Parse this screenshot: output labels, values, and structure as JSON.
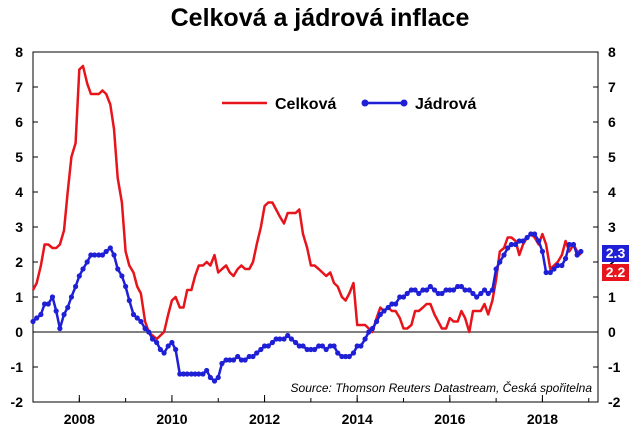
{
  "chart_data": {
    "type": "line",
    "title": "Celková a jádrová inflace",
    "source": "Source: Thomson Reuters Datastream, Česká spořitelna",
    "xlim": [
      2007.0,
      2019.2
    ],
    "ylim": [
      -2,
      8
    ],
    "x_ticks": [
      2008,
      2010,
      2012,
      2014,
      2016,
      2018
    ],
    "y_ticks": [
      -2,
      -1,
      0,
      1,
      2,
      3,
      4,
      5,
      6,
      7,
      8
    ],
    "grid": false,
    "legend": "top-center",
    "series": [
      {
        "name": "Celková",
        "color": "#e8141b",
        "markers": false,
        "end_label": "2.2",
        "x": [
          2007.0,
          2007.08,
          2007.17,
          2007.25,
          2007.33,
          2007.42,
          2007.5,
          2007.58,
          2007.67,
          2007.75,
          2007.83,
          2007.92,
          2008.0,
          2008.08,
          2008.17,
          2008.25,
          2008.33,
          2008.42,
          2008.5,
          2008.58,
          2008.67,
          2008.75,
          2008.83,
          2008.92,
          2009.0,
          2009.08,
          2009.17,
          2009.25,
          2009.33,
          2009.42,
          2009.5,
          2009.58,
          2009.67,
          2009.75,
          2009.83,
          2009.92,
          2010.0,
          2010.08,
          2010.17,
          2010.25,
          2010.33,
          2010.42,
          2010.5,
          2010.58,
          2010.67,
          2010.75,
          2010.83,
          2010.92,
          2011.0,
          2011.08,
          2011.17,
          2011.25,
          2011.33,
          2011.42,
          2011.5,
          2011.58,
          2011.67,
          2011.75,
          2011.83,
          2011.92,
          2012.0,
          2012.08,
          2012.17,
          2012.25,
          2012.33,
          2012.42,
          2012.5,
          2012.58,
          2012.67,
          2012.75,
          2012.83,
          2012.92,
          2013.0,
          2013.08,
          2013.17,
          2013.25,
          2013.33,
          2013.42,
          2013.5,
          2013.58,
          2013.67,
          2013.75,
          2013.83,
          2013.92,
          2014.0,
          2014.08,
          2014.17,
          2014.25,
          2014.33,
          2014.42,
          2014.5,
          2014.58,
          2014.67,
          2014.75,
          2014.83,
          2014.92,
          2015.0,
          2015.08,
          2015.17,
          2015.25,
          2015.33,
          2015.42,
          2015.5,
          2015.58,
          2015.67,
          2015.75,
          2015.83,
          2015.92,
          2016.0,
          2016.08,
          2016.17,
          2016.25,
          2016.33,
          2016.42,
          2016.5,
          2016.58,
          2016.67,
          2016.75,
          2016.83,
          2016.92,
          2017.0,
          2017.08,
          2017.17,
          2017.25,
          2017.33,
          2017.42,
          2017.5,
          2017.58,
          2017.67,
          2017.75,
          2017.83,
          2017.92,
          2018.0,
          2018.08,
          2018.17,
          2018.25,
          2018.33,
          2018.42,
          2018.5,
          2018.58,
          2018.67,
          2018.75,
          2018.83
        ],
        "values": [
          1.2,
          1.4,
          1.9,
          2.5,
          2.5,
          2.4,
          2.4,
          2.5,
          2.9,
          4.0,
          5.0,
          5.4,
          7.5,
          7.6,
          7.1,
          6.8,
          6.8,
          6.8,
          6.9,
          6.8,
          6.5,
          5.8,
          4.4,
          3.7,
          2.3,
          1.9,
          1.7,
          1.3,
          1.1,
          0.3,
          0.0,
          -0.1,
          -0.2,
          -0.1,
          0.0,
          0.5,
          0.9,
          1.0,
          0.7,
          0.7,
          1.2,
          1.2,
          1.6,
          1.9,
          1.9,
          2.0,
          1.9,
          2.2,
          1.7,
          1.8,
          1.9,
          1.7,
          1.6,
          1.8,
          1.9,
          1.8,
          1.8,
          2.0,
          2.5,
          3.0,
          3.6,
          3.7,
          3.7,
          3.5,
          3.3,
          3.1,
          3.4,
          3.4,
          3.4,
          3.5,
          2.8,
          2.4,
          1.9,
          1.9,
          1.8,
          1.7,
          1.6,
          1.7,
          1.4,
          1.3,
          1.0,
          0.9,
          1.1,
          1.4,
          0.2,
          0.2,
          0.2,
          0.1,
          0.0,
          0.4,
          0.7,
          0.6,
          0.7,
          0.6,
          0.6,
          0.4,
          0.1,
          0.1,
          0.2,
          0.6,
          0.6,
          0.7,
          0.8,
          0.8,
          0.5,
          0.3,
          0.1,
          0.1,
          0.4,
          0.3,
          0.3,
          0.6,
          0.4,
          0.0,
          0.6,
          0.6,
          0.6,
          0.8,
          0.5,
          0.9,
          1.5,
          2.3,
          2.4,
          2.7,
          2.7,
          2.6,
          2.2,
          2.5,
          2.7,
          2.8,
          2.7,
          2.5,
          2.8,
          2.5,
          1.8,
          1.9,
          2.0,
          2.2,
          2.6,
          2.3,
          2.5,
          2.3,
          2.2
        ]
      },
      {
        "name": "Jádrová",
        "color": "#1f1fd6",
        "markers": true,
        "end_label": "2.3",
        "x": [
          2007.0,
          2007.08,
          2007.17,
          2007.25,
          2007.33,
          2007.42,
          2007.5,
          2007.58,
          2007.67,
          2007.75,
          2007.83,
          2007.92,
          2008.0,
          2008.08,
          2008.17,
          2008.25,
          2008.33,
          2008.42,
          2008.5,
          2008.58,
          2008.67,
          2008.75,
          2008.83,
          2008.92,
          2009.0,
          2009.08,
          2009.17,
          2009.25,
          2009.33,
          2009.42,
          2009.5,
          2009.58,
          2009.67,
          2009.75,
          2009.83,
          2009.92,
          2010.0,
          2010.08,
          2010.17,
          2010.25,
          2010.33,
          2010.42,
          2010.5,
          2010.58,
          2010.67,
          2010.75,
          2010.83,
          2010.92,
          2011.0,
          2011.08,
          2011.17,
          2011.25,
          2011.33,
          2011.42,
          2011.5,
          2011.58,
          2011.67,
          2011.75,
          2011.83,
          2011.92,
          2012.0,
          2012.08,
          2012.17,
          2012.25,
          2012.33,
          2012.42,
          2012.5,
          2012.58,
          2012.67,
          2012.75,
          2012.83,
          2012.92,
          2013.0,
          2013.08,
          2013.17,
          2013.25,
          2013.33,
          2013.42,
          2013.5,
          2013.58,
          2013.67,
          2013.75,
          2013.83,
          2013.92,
          2014.0,
          2014.08,
          2014.17,
          2014.25,
          2014.33,
          2014.42,
          2014.5,
          2014.58,
          2014.67,
          2014.75,
          2014.83,
          2014.92,
          2015.0,
          2015.08,
          2015.17,
          2015.25,
          2015.33,
          2015.42,
          2015.5,
          2015.58,
          2015.67,
          2015.75,
          2015.83,
          2015.92,
          2016.0,
          2016.08,
          2016.17,
          2016.25,
          2016.33,
          2016.42,
          2016.5,
          2016.58,
          2016.67,
          2016.75,
          2016.83,
          2016.92,
          2017.0,
          2017.08,
          2017.17,
          2017.25,
          2017.33,
          2017.42,
          2017.5,
          2017.58,
          2017.67,
          2017.75,
          2017.83,
          2017.92,
          2018.0,
          2018.08,
          2018.17,
          2018.25,
          2018.33,
          2018.42,
          2018.5,
          2018.58,
          2018.67,
          2018.75,
          2018.83
        ],
        "values": [
          0.3,
          0.4,
          0.5,
          0.8,
          0.8,
          1.0,
          0.6,
          0.1,
          0.5,
          0.7,
          1.0,
          1.3,
          1.6,
          1.8,
          2.0,
          2.2,
          2.2,
          2.2,
          2.2,
          2.3,
          2.4,
          2.2,
          1.8,
          1.6,
          1.3,
          0.9,
          0.5,
          0.4,
          0.3,
          0.1,
          0.0,
          -0.2,
          -0.3,
          -0.5,
          -0.6,
          -0.4,
          -0.3,
          -0.5,
          -1.2,
          -1.2,
          -1.2,
          -1.2,
          -1.2,
          -1.2,
          -1.2,
          -1.1,
          -1.3,
          -1.4,
          -1.3,
          -0.9,
          -0.8,
          -0.8,
          -0.8,
          -0.7,
          -0.8,
          -0.8,
          -0.7,
          -0.7,
          -0.6,
          -0.5,
          -0.4,
          -0.4,
          -0.3,
          -0.2,
          -0.2,
          -0.2,
          -0.1,
          -0.2,
          -0.3,
          -0.4,
          -0.4,
          -0.5,
          -0.5,
          -0.5,
          -0.4,
          -0.4,
          -0.5,
          -0.4,
          -0.4,
          -0.6,
          -0.7,
          -0.7,
          -0.7,
          -0.6,
          -0.4,
          -0.4,
          -0.2,
          0.0,
          0.1,
          0.3,
          0.5,
          0.6,
          0.7,
          0.8,
          0.8,
          1.0,
          1.0,
          1.1,
          1.2,
          1.2,
          1.1,
          1.2,
          1.2,
          1.3,
          1.2,
          1.1,
          1.1,
          1.2,
          1.2,
          1.2,
          1.3,
          1.3,
          1.2,
          1.2,
          1.1,
          1.0,
          1.1,
          1.2,
          1.1,
          1.2,
          1.8,
          2.0,
          2.2,
          2.4,
          2.5,
          2.5,
          2.6,
          2.6,
          2.7,
          2.8,
          2.8,
          2.6,
          2.3,
          1.7,
          1.7,
          1.8,
          1.9,
          1.9,
          2.1,
          2.5,
          2.5,
          2.2,
          2.3
        ]
      }
    ]
  }
}
